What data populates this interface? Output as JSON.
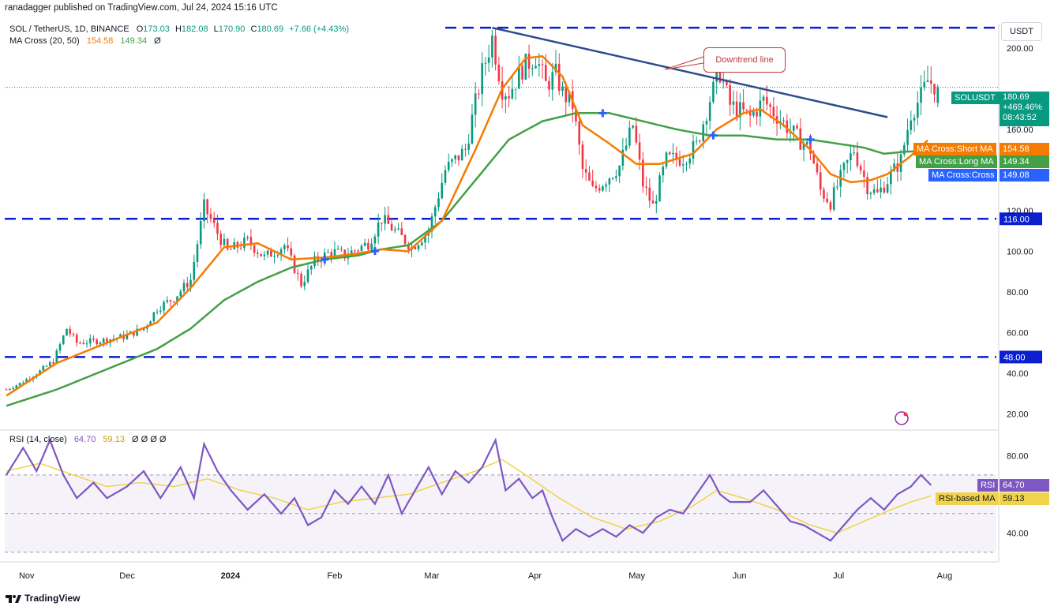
{
  "header": {
    "published": "ranadagger published on TradingView.com, Jul 24, 2024 15:16 UTC",
    "symbol": "SOL / TetherUS, 1D, BINANCE",
    "open_label": "O",
    "open": "173.03",
    "high_label": "H",
    "high": "182.08",
    "low_label": "L",
    "low": "170.90",
    "close_label": "C",
    "close": "180.69",
    "change": "+7.66 (+4.43%)",
    "ma_label": "MA Cross (20, 50)",
    "ma_short": "154.58",
    "ma_long": "149.34",
    "ma_extra": "Ø",
    "rsi_label": "RSI (14, close)",
    "rsi_value": "64.70",
    "rsi_ma_value": "59.13",
    "rsi_extras": "Ø Ø Ø Ø",
    "currency": "USDT"
  },
  "price_tag": {
    "symbol": "SOLUSDT",
    "price": "180.69",
    "pct": "+469.46%",
    "countdown": "08:43:52"
  },
  "ma_tags": {
    "short": {
      "name": "MA Cross:Short MA",
      "value": "154.58"
    },
    "long": {
      "name": "MA Cross:Long MA",
      "value": "149.34"
    },
    "cross": {
      "name": "MA Cross:Cross",
      "value": "149.08"
    }
  },
  "rsi_tags": {
    "rsi": {
      "name": "RSI",
      "value": "64.70"
    },
    "ma": {
      "name": "RSI-based MA",
      "value": "59.13"
    }
  },
  "annotation": "Downtrend line",
  "footer": {
    "brand": "TradingView"
  },
  "colors": {
    "bull": "#089981",
    "bear": "#f23645",
    "short_ma": "#f57c00",
    "long_ma": "#43a047",
    "level": "#0b1fd1",
    "trend": "#2c4a8c",
    "rsi": "#7e57c2",
    "rsi_ma": "#f0d34a",
    "cross": "#2962ff"
  },
  "chart_data": {
    "type": "candlestick",
    "title": "SOL / TetherUS, 1D, BINANCE",
    "x_ticks": [
      "Nov",
      "Dec",
      "2024",
      "Feb",
      "Mar",
      "Apr",
      "May",
      "Jun",
      "Jul",
      "Aug"
    ],
    "price_axis": {
      "ylim": [
        14,
        212
      ],
      "ticks": [
        "200.00",
        "160.00",
        "120.00",
        "100.00",
        "80.00",
        "60.00",
        "40.00",
        "20.00"
      ]
    },
    "rsi_axis": {
      "ylim": [
        25,
        92
      ],
      "ticks": [
        "80.00",
        "40.00"
      ],
      "bands": [
        30,
        70
      ]
    },
    "horizontal_levels": [
      {
        "value": 210,
        "label": ""
      },
      {
        "value": 116,
        "label": "116.00"
      },
      {
        "value": 48,
        "label": "48.00"
      }
    ],
    "trendline": {
      "label": "Downtrend line",
      "start": {
        "day": 145,
        "price": 210
      },
      "end": {
        "day": 263,
        "price": 166
      }
    },
    "ma_cross_days": [
      95,
      110,
      178,
      211,
      240,
      273
    ],
    "series_keypoints": {
      "close": [
        [
          0,
          32
        ],
        [
          4,
          35
        ],
        [
          10,
          41
        ],
        [
          14,
          46
        ],
        [
          18,
          62
        ],
        [
          21,
          55
        ],
        [
          28,
          56
        ],
        [
          35,
          58
        ],
        [
          41,
          62
        ],
        [
          45,
          72
        ],
        [
          50,
          77
        ],
        [
          55,
          86
        ],
        [
          59,
          122
        ],
        [
          63,
          109
        ],
        [
          66,
          100
        ],
        [
          72,
          105
        ],
        [
          77,
          97
        ],
        [
          83,
          103
        ],
        [
          88,
          84
        ],
        [
          92,
          95
        ],
        [
          97,
          100
        ],
        [
          101,
          98
        ],
        [
          108,
          104
        ],
        [
          112,
          116
        ],
        [
          116,
          110
        ],
        [
          121,
          102
        ],
        [
          126,
          110
        ],
        [
          131,
          140
        ],
        [
          137,
          150
        ],
        [
          142,
          188
        ],
        [
          145,
          205
        ],
        [
          148,
          180
        ],
        [
          150,
          178
        ],
        [
          154,
          190
        ],
        [
          158,
          196
        ],
        [
          161,
          182
        ],
        [
          164,
          187
        ],
        [
          166,
          178
        ],
        [
          169,
          172
        ],
        [
          172,
          140
        ],
        [
          175,
          130
        ],
        [
          178,
          134
        ],
        [
          183,
          142
        ],
        [
          187,
          162
        ],
        [
          190,
          133
        ],
        [
          193,
          122
        ],
        [
          197,
          145
        ],
        [
          202,
          146
        ],
        [
          206,
          152
        ],
        [
          210,
          175
        ],
        [
          213,
          188
        ],
        [
          216,
          172
        ],
        [
          222,
          166
        ],
        [
          226,
          174
        ],
        [
          231,
          165
        ],
        [
          236,
          156
        ],
        [
          240,
          150
        ],
        [
          243,
          130
        ],
        [
          246,
          124
        ],
        [
          250,
          140
        ],
        [
          253,
          150
        ],
        [
          257,
          132
        ],
        [
          260,
          128
        ],
        [
          263,
          135
        ],
        [
          267,
          145
        ],
        [
          270,
          168
        ],
        [
          273,
          176
        ],
        [
          275,
          184
        ],
        [
          278,
          180.69
        ]
      ],
      "ma_short": [
        [
          0,
          29
        ],
        [
          15,
          45
        ],
        [
          30,
          55
        ],
        [
          45,
          65
        ],
        [
          55,
          82
        ],
        [
          65,
          102
        ],
        [
          75,
          104
        ],
        [
          85,
          96
        ],
        [
          95,
          97
        ],
        [
          105,
          99
        ],
        [
          112,
          101
        ],
        [
          120,
          100
        ],
        [
          130,
          115
        ],
        [
          140,
          150
        ],
        [
          148,
          180
        ],
        [
          155,
          195
        ],
        [
          160,
          196
        ],
        [
          166,
          186
        ],
        [
          172,
          162
        ],
        [
          180,
          153
        ],
        [
          188,
          143
        ],
        [
          195,
          143
        ],
        [
          205,
          148
        ],
        [
          212,
          160
        ],
        [
          220,
          168
        ],
        [
          225,
          170
        ],
        [
          232,
          162
        ],
        [
          240,
          150
        ],
        [
          246,
          138
        ],
        [
          252,
          134
        ],
        [
          258,
          135
        ],
        [
          263,
          138
        ],
        [
          270,
          147
        ],
        [
          275,
          154.58
        ]
      ],
      "ma_long": [
        [
          0,
          24
        ],
        [
          15,
          32
        ],
        [
          30,
          42
        ],
        [
          45,
          52
        ],
        [
          55,
          62
        ],
        [
          65,
          76
        ],
        [
          75,
          85
        ],
        [
          85,
          92
        ],
        [
          95,
          96
        ],
        [
          105,
          98
        ],
        [
          112,
          101
        ],
        [
          120,
          103
        ],
        [
          130,
          115
        ],
        [
          140,
          135
        ],
        [
          150,
          155
        ],
        [
          160,
          164
        ],
        [
          170,
          168
        ],
        [
          180,
          168
        ],
        [
          190,
          164
        ],
        [
          200,
          160
        ],
        [
          210,
          157
        ],
        [
          220,
          157
        ],
        [
          230,
          155
        ],
        [
          240,
          155
        ],
        [
          248,
          153
        ],
        [
          256,
          151
        ],
        [
          262,
          148
        ],
        [
          268,
          149
        ],
        [
          275,
          149.34
        ]
      ],
      "rsi": [
        [
          0,
          70
        ],
        [
          5,
          84
        ],
        [
          9,
          72
        ],
        [
          13,
          88
        ],
        [
          17,
          70
        ],
        [
          21,
          58
        ],
        [
          26,
          66
        ],
        [
          30,
          58
        ],
        [
          36,
          64
        ],
        [
          41,
          72
        ],
        [
          46,
          58
        ],
        [
          52,
          74
        ],
        [
          56,
          58
        ],
        [
          59,
          86
        ],
        [
          63,
          72
        ],
        [
          67,
          62
        ],
        [
          72,
          52
        ],
        [
          77,
          60
        ],
        [
          82,
          50
        ],
        [
          86,
          58
        ],
        [
          90,
          44
        ],
        [
          94,
          48
        ],
        [
          98,
          62
        ],
        [
          102,
          55
        ],
        [
          106,
          64
        ],
        [
          110,
          55
        ],
        [
          114,
          70
        ],
        [
          118,
          50
        ],
        [
          122,
          62
        ],
        [
          126,
          74
        ],
        [
          130,
          60
        ],
        [
          134,
          72
        ],
        [
          138,
          66
        ],
        [
          142,
          74
        ],
        [
          146,
          88
        ],
        [
          149,
          62
        ],
        [
          153,
          68
        ],
        [
          157,
          58
        ],
        [
          160,
          62
        ],
        [
          163,
          48
        ],
        [
          166,
          36
        ],
        [
          170,
          42
        ],
        [
          174,
          38
        ],
        [
          178,
          42
        ],
        [
          182,
          38
        ],
        [
          186,
          44
        ],
        [
          190,
          40
        ],
        [
          194,
          48
        ],
        [
          198,
          52
        ],
        [
          202,
          50
        ],
        [
          206,
          60
        ],
        [
          210,
          70
        ],
        [
          213,
          60
        ],
        [
          216,
          56
        ],
        [
          222,
          56
        ],
        [
          226,
          62
        ],
        [
          230,
          54
        ],
        [
          234,
          46
        ],
        [
          238,
          44
        ],
        [
          242,
          40
        ],
        [
          246,
          36
        ],
        [
          250,
          44
        ],
        [
          254,
          52
        ],
        [
          258,
          58
        ],
        [
          262,
          52
        ],
        [
          266,
          60
        ],
        [
          270,
          64
        ],
        [
          273,
          70
        ],
        [
          276,
          64.7
        ]
      ],
      "rsi_ma": [
        [
          0,
          72
        ],
        [
          10,
          76
        ],
        [
          20,
          70
        ],
        [
          30,
          64
        ],
        [
          40,
          66
        ],
        [
          50,
          64
        ],
        [
          60,
          68
        ],
        [
          70,
          62
        ],
        [
          80,
          58
        ],
        [
          90,
          52
        ],
        [
          100,
          56
        ],
        [
          110,
          58
        ],
        [
          120,
          60
        ],
        [
          130,
          66
        ],
        [
          140,
          72
        ],
        [
          148,
          78
        ],
        [
          155,
          70
        ],
        [
          165,
          58
        ],
        [
          175,
          48
        ],
        [
          185,
          42
        ],
        [
          195,
          46
        ],
        [
          205,
          54
        ],
        [
          212,
          62
        ],
        [
          220,
          58
        ],
        [
          230,
          52
        ],
        [
          240,
          44
        ],
        [
          248,
          40
        ],
        [
          256,
          46
        ],
        [
          264,
          52
        ],
        [
          270,
          56
        ],
        [
          276,
          59.13
        ]
      ]
    }
  }
}
